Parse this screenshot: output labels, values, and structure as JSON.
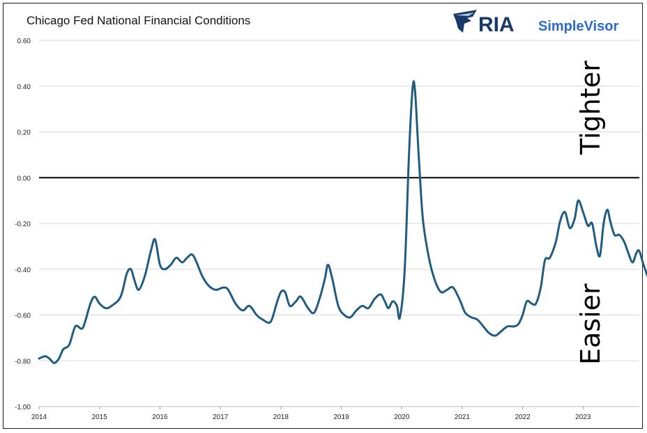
{
  "chart_data": {
    "type": "line",
    "title": "Chicago Fed National Financial Conditions",
    "xlabel": "",
    "ylabel": "",
    "xlim": [
      2014.0,
      2024.0
    ],
    "ylim": [
      -1.0,
      0.6
    ],
    "y_ticks": [
      "0.60",
      "0.40",
      "0.20",
      "0.00",
      "-0.20",
      "-0.40",
      "-0.60",
      "-0.80",
      "-1.00"
    ],
    "x_ticks": [
      "2014",
      "2015",
      "2016",
      "2017",
      "2018",
      "2019",
      "2020",
      "2021",
      "2022",
      "2023"
    ],
    "grid": true,
    "zero_line": true,
    "annotations": {
      "upper": "Tighter",
      "lower": "Easier"
    },
    "series": [
      {
        "color": "#1f5c80",
        "points": [
          [
            2014.0,
            -0.79
          ],
          [
            2014.1,
            -0.78
          ],
          [
            2014.17,
            -0.79
          ],
          [
            2014.25,
            -0.81
          ],
          [
            2014.33,
            -0.79
          ],
          [
            2014.4,
            -0.75
          ],
          [
            2014.5,
            -0.73
          ],
          [
            2014.6,
            -0.65
          ],
          [
            2014.7,
            -0.66
          ],
          [
            2014.75,
            -0.64
          ],
          [
            2014.85,
            -0.55
          ],
          [
            2014.92,
            -0.52
          ],
          [
            2015.0,
            -0.55
          ],
          [
            2015.1,
            -0.57
          ],
          [
            2015.2,
            -0.56
          ],
          [
            2015.35,
            -0.52
          ],
          [
            2015.45,
            -0.42
          ],
          [
            2015.52,
            -0.4
          ],
          [
            2015.58,
            -0.45
          ],
          [
            2015.65,
            -0.49
          ],
          [
            2015.75,
            -0.43
          ],
          [
            2015.85,
            -0.32
          ],
          [
            2015.92,
            -0.27
          ],
          [
            2016.0,
            -0.38
          ],
          [
            2016.08,
            -0.4
          ],
          [
            2016.18,
            -0.38
          ],
          [
            2016.27,
            -0.35
          ],
          [
            2016.37,
            -0.37
          ],
          [
            2016.45,
            -0.35
          ],
          [
            2016.55,
            -0.34
          ],
          [
            2016.7,
            -0.43
          ],
          [
            2016.8,
            -0.47
          ],
          [
            2016.92,
            -0.49
          ],
          [
            2017.05,
            -0.48
          ],
          [
            2017.13,
            -0.49
          ],
          [
            2017.25,
            -0.55
          ],
          [
            2017.37,
            -0.58
          ],
          [
            2017.48,
            -0.56
          ],
          [
            2017.6,
            -0.6
          ],
          [
            2017.7,
            -0.62
          ],
          [
            2017.83,
            -0.63
          ],
          [
            2017.93,
            -0.55
          ],
          [
            2018.0,
            -0.5
          ],
          [
            2018.07,
            -0.5
          ],
          [
            2018.15,
            -0.56
          ],
          [
            2018.25,
            -0.54
          ],
          [
            2018.33,
            -0.52
          ],
          [
            2018.45,
            -0.57
          ],
          [
            2018.55,
            -0.59
          ],
          [
            2018.65,
            -0.52
          ],
          [
            2018.73,
            -0.44
          ],
          [
            2018.78,
            -0.38
          ],
          [
            2018.85,
            -0.44
          ],
          [
            2018.95,
            -0.56
          ],
          [
            2019.05,
            -0.6
          ],
          [
            2019.15,
            -0.61
          ],
          [
            2019.25,
            -0.58
          ],
          [
            2019.35,
            -0.56
          ],
          [
            2019.45,
            -0.57
          ],
          [
            2019.55,
            -0.53
          ],
          [
            2019.65,
            -0.51
          ],
          [
            2019.72,
            -0.54
          ],
          [
            2019.78,
            -0.57
          ],
          [
            2019.85,
            -0.54
          ],
          [
            2019.92,
            -0.56
          ],
          [
            2019.97,
            -0.61
          ],
          [
            2020.05,
            -0.4
          ],
          [
            2020.12,
            0.1
          ],
          [
            2020.18,
            0.39
          ],
          [
            2020.22,
            0.38
          ],
          [
            2020.28,
            0.1
          ],
          [
            2020.35,
            -0.18
          ],
          [
            2020.45,
            -0.35
          ],
          [
            2020.55,
            -0.45
          ],
          [
            2020.65,
            -0.5
          ],
          [
            2020.75,
            -0.49
          ],
          [
            2020.85,
            -0.48
          ],
          [
            2020.97,
            -0.54
          ],
          [
            2021.05,
            -0.59
          ],
          [
            2021.15,
            -0.61
          ],
          [
            2021.25,
            -0.62
          ],
          [
            2021.35,
            -0.65
          ],
          [
            2021.45,
            -0.68
          ],
          [
            2021.55,
            -0.69
          ],
          [
            2021.65,
            -0.67
          ],
          [
            2021.75,
            -0.65
          ],
          [
            2021.85,
            -0.65
          ],
          [
            2021.93,
            -0.64
          ],
          [
            2022.0,
            -0.6
          ],
          [
            2022.07,
            -0.54
          ],
          [
            2022.15,
            -0.55
          ],
          [
            2022.22,
            -0.55
          ],
          [
            2022.3,
            -0.48
          ],
          [
            2022.37,
            -0.36
          ],
          [
            2022.45,
            -0.35
          ],
          [
            2022.55,
            -0.28
          ],
          [
            2022.62,
            -0.19
          ],
          [
            2022.7,
            -0.15
          ],
          [
            2022.78,
            -0.22
          ],
          [
            2022.86,
            -0.18
          ],
          [
            2022.92,
            -0.1
          ],
          [
            2023.0,
            -0.15
          ],
          [
            2023.08,
            -0.21
          ],
          [
            2023.15,
            -0.2
          ],
          [
            2023.22,
            -0.3
          ],
          [
            2023.28,
            -0.34
          ],
          [
            2023.34,
            -0.2
          ],
          [
            2023.4,
            -0.14
          ],
          [
            2023.45,
            -0.19
          ],
          [
            2023.52,
            -0.25
          ],
          [
            2023.6,
            -0.25
          ],
          [
            2023.68,
            -0.28
          ],
          [
            2023.75,
            -0.33
          ],
          [
            2023.82,
            -0.37
          ],
          [
            2023.88,
            -0.33
          ],
          [
            2023.93,
            -0.32
          ],
          [
            2024.0,
            -0.38
          ],
          [
            2024.1,
            -0.45
          ],
          [
            2024.2,
            -0.48
          ],
          [
            2024.28,
            -0.5
          ],
          [
            2024.33,
            -0.49
          ],
          [
            2024.38,
            -0.5
          ]
        ]
      }
    ]
  },
  "logo": {
    "brand": "RIA",
    "product": "SimpleVisor",
    "brand_color": "#173a6b",
    "product_color": "#2a6ad1"
  }
}
